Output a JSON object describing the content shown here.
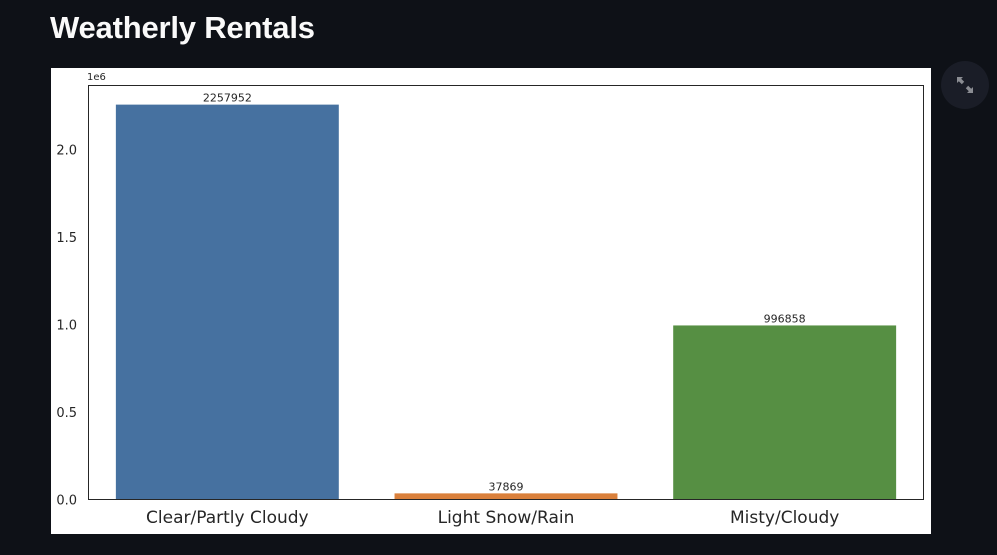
{
  "page": {
    "title": "Weatherly Rentals"
  },
  "toolbar": {
    "fullscreen_icon": "expand-arrows-icon"
  },
  "chart_data": {
    "type": "bar",
    "categories": [
      "Clear/Partly Cloudy",
      "Light Snow/Rain",
      "Misty/Cloudy"
    ],
    "values": [
      2257952,
      37869,
      996858
    ],
    "data_labels": [
      "2257952",
      "37869",
      "996858"
    ],
    "colors": [
      "#4671a0",
      "#da803b",
      "#568f43"
    ],
    "title": "",
    "xlabel": "",
    "ylabel": "",
    "ylim": [
      0,
      2370000
    ],
    "yticks": [
      0,
      500000,
      1000000,
      1500000,
      2000000
    ],
    "ytick_labels": [
      "0.0",
      "0.5",
      "1.0",
      "1.5",
      "2.0"
    ],
    "offset_text": "1e6",
    "grid": false
  }
}
